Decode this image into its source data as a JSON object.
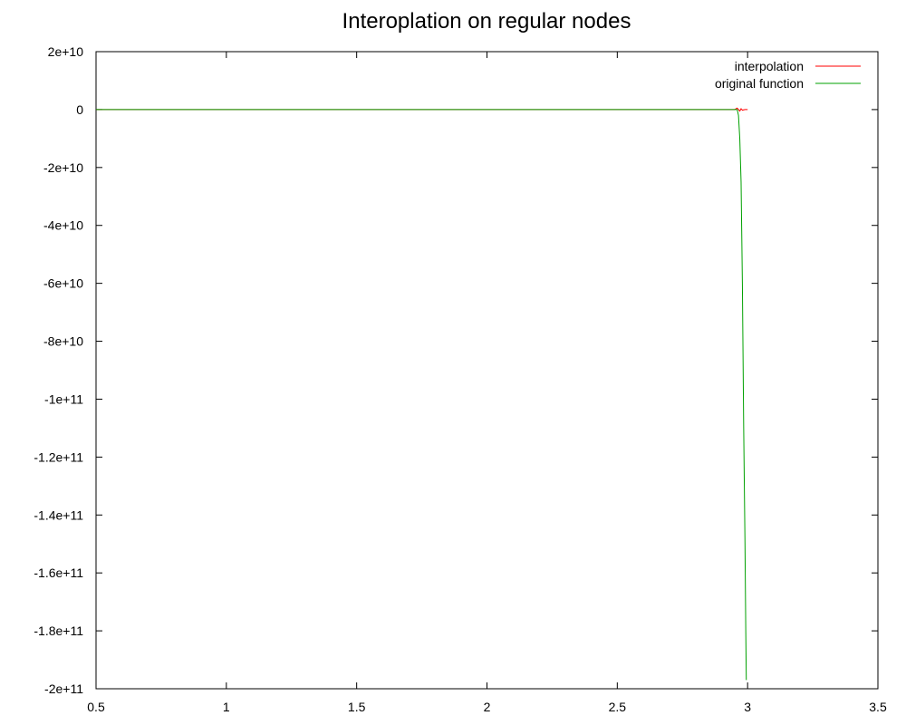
{
  "chart_data": {
    "type": "line",
    "title": "Interoplation on regular nodes",
    "xlabel": "",
    "ylabel": "",
    "xlim": [
      0.5,
      3.5
    ],
    "ylim": [
      -200000000000.0,
      20000000000.0
    ],
    "x_ticks": [
      {
        "value": 0.5,
        "label": "0.5"
      },
      {
        "value": 1,
        "label": "1"
      },
      {
        "value": 1.5,
        "label": "1.5"
      },
      {
        "value": 2,
        "label": "2"
      },
      {
        "value": 2.5,
        "label": "2.5"
      },
      {
        "value": 3,
        "label": "3"
      },
      {
        "value": 3.5,
        "label": "3.5"
      }
    ],
    "y_ticks": [
      {
        "value": 20000000000.0,
        "label": "2e+10"
      },
      {
        "value": 0,
        "label": "0"
      },
      {
        "value": -20000000000.0,
        "label": "-2e+10"
      },
      {
        "value": -40000000000.0,
        "label": "-4e+10"
      },
      {
        "value": -60000000000.0,
        "label": "-6e+10"
      },
      {
        "value": -80000000000.0,
        "label": "-8e+10"
      },
      {
        "value": -100000000000.0,
        "label": "-1e+11"
      },
      {
        "value": -120000000000.0,
        "label": "-1.2e+11"
      },
      {
        "value": -140000000000.0,
        "label": "-1.4e+11"
      },
      {
        "value": -160000000000.0,
        "label": "-1.6e+11"
      },
      {
        "value": -180000000000.0,
        "label": "-1.8e+11"
      },
      {
        "value": -200000000000.0,
        "label": "-2e+11"
      }
    ],
    "grid": false,
    "legend_position": "top-right",
    "series": [
      {
        "name": "interpolation",
        "color": "#ff0000",
        "x": [
          0.5,
          1.0,
          1.5,
          2.0,
          2.5,
          2.9,
          2.95,
          2.96,
          2.97,
          2.975,
          2.98,
          2.99,
          3.0
        ],
        "y": [
          0,
          0,
          0,
          0,
          0,
          0,
          0,
          500000000.0,
          -500000000.0,
          300000000.0,
          -200000000.0,
          0,
          0
        ]
      },
      {
        "name": "original function",
        "color": "#00a000",
        "x": [
          0.5,
          1.0,
          1.5,
          2.0,
          2.5,
          2.9,
          2.95,
          2.96,
          2.965,
          2.97,
          2.975,
          2.98,
          2.985,
          2.99,
          2.993,
          2.995
        ],
        "y": [
          0,
          0,
          0,
          0,
          0,
          0,
          0,
          0,
          -2000000000.0,
          -10000000000.0,
          -25000000000.0,
          -60000000000.0,
          -110000000000.0,
          -150000000000.0,
          -180000000000.0,
          -197000000000.0
        ]
      }
    ]
  }
}
